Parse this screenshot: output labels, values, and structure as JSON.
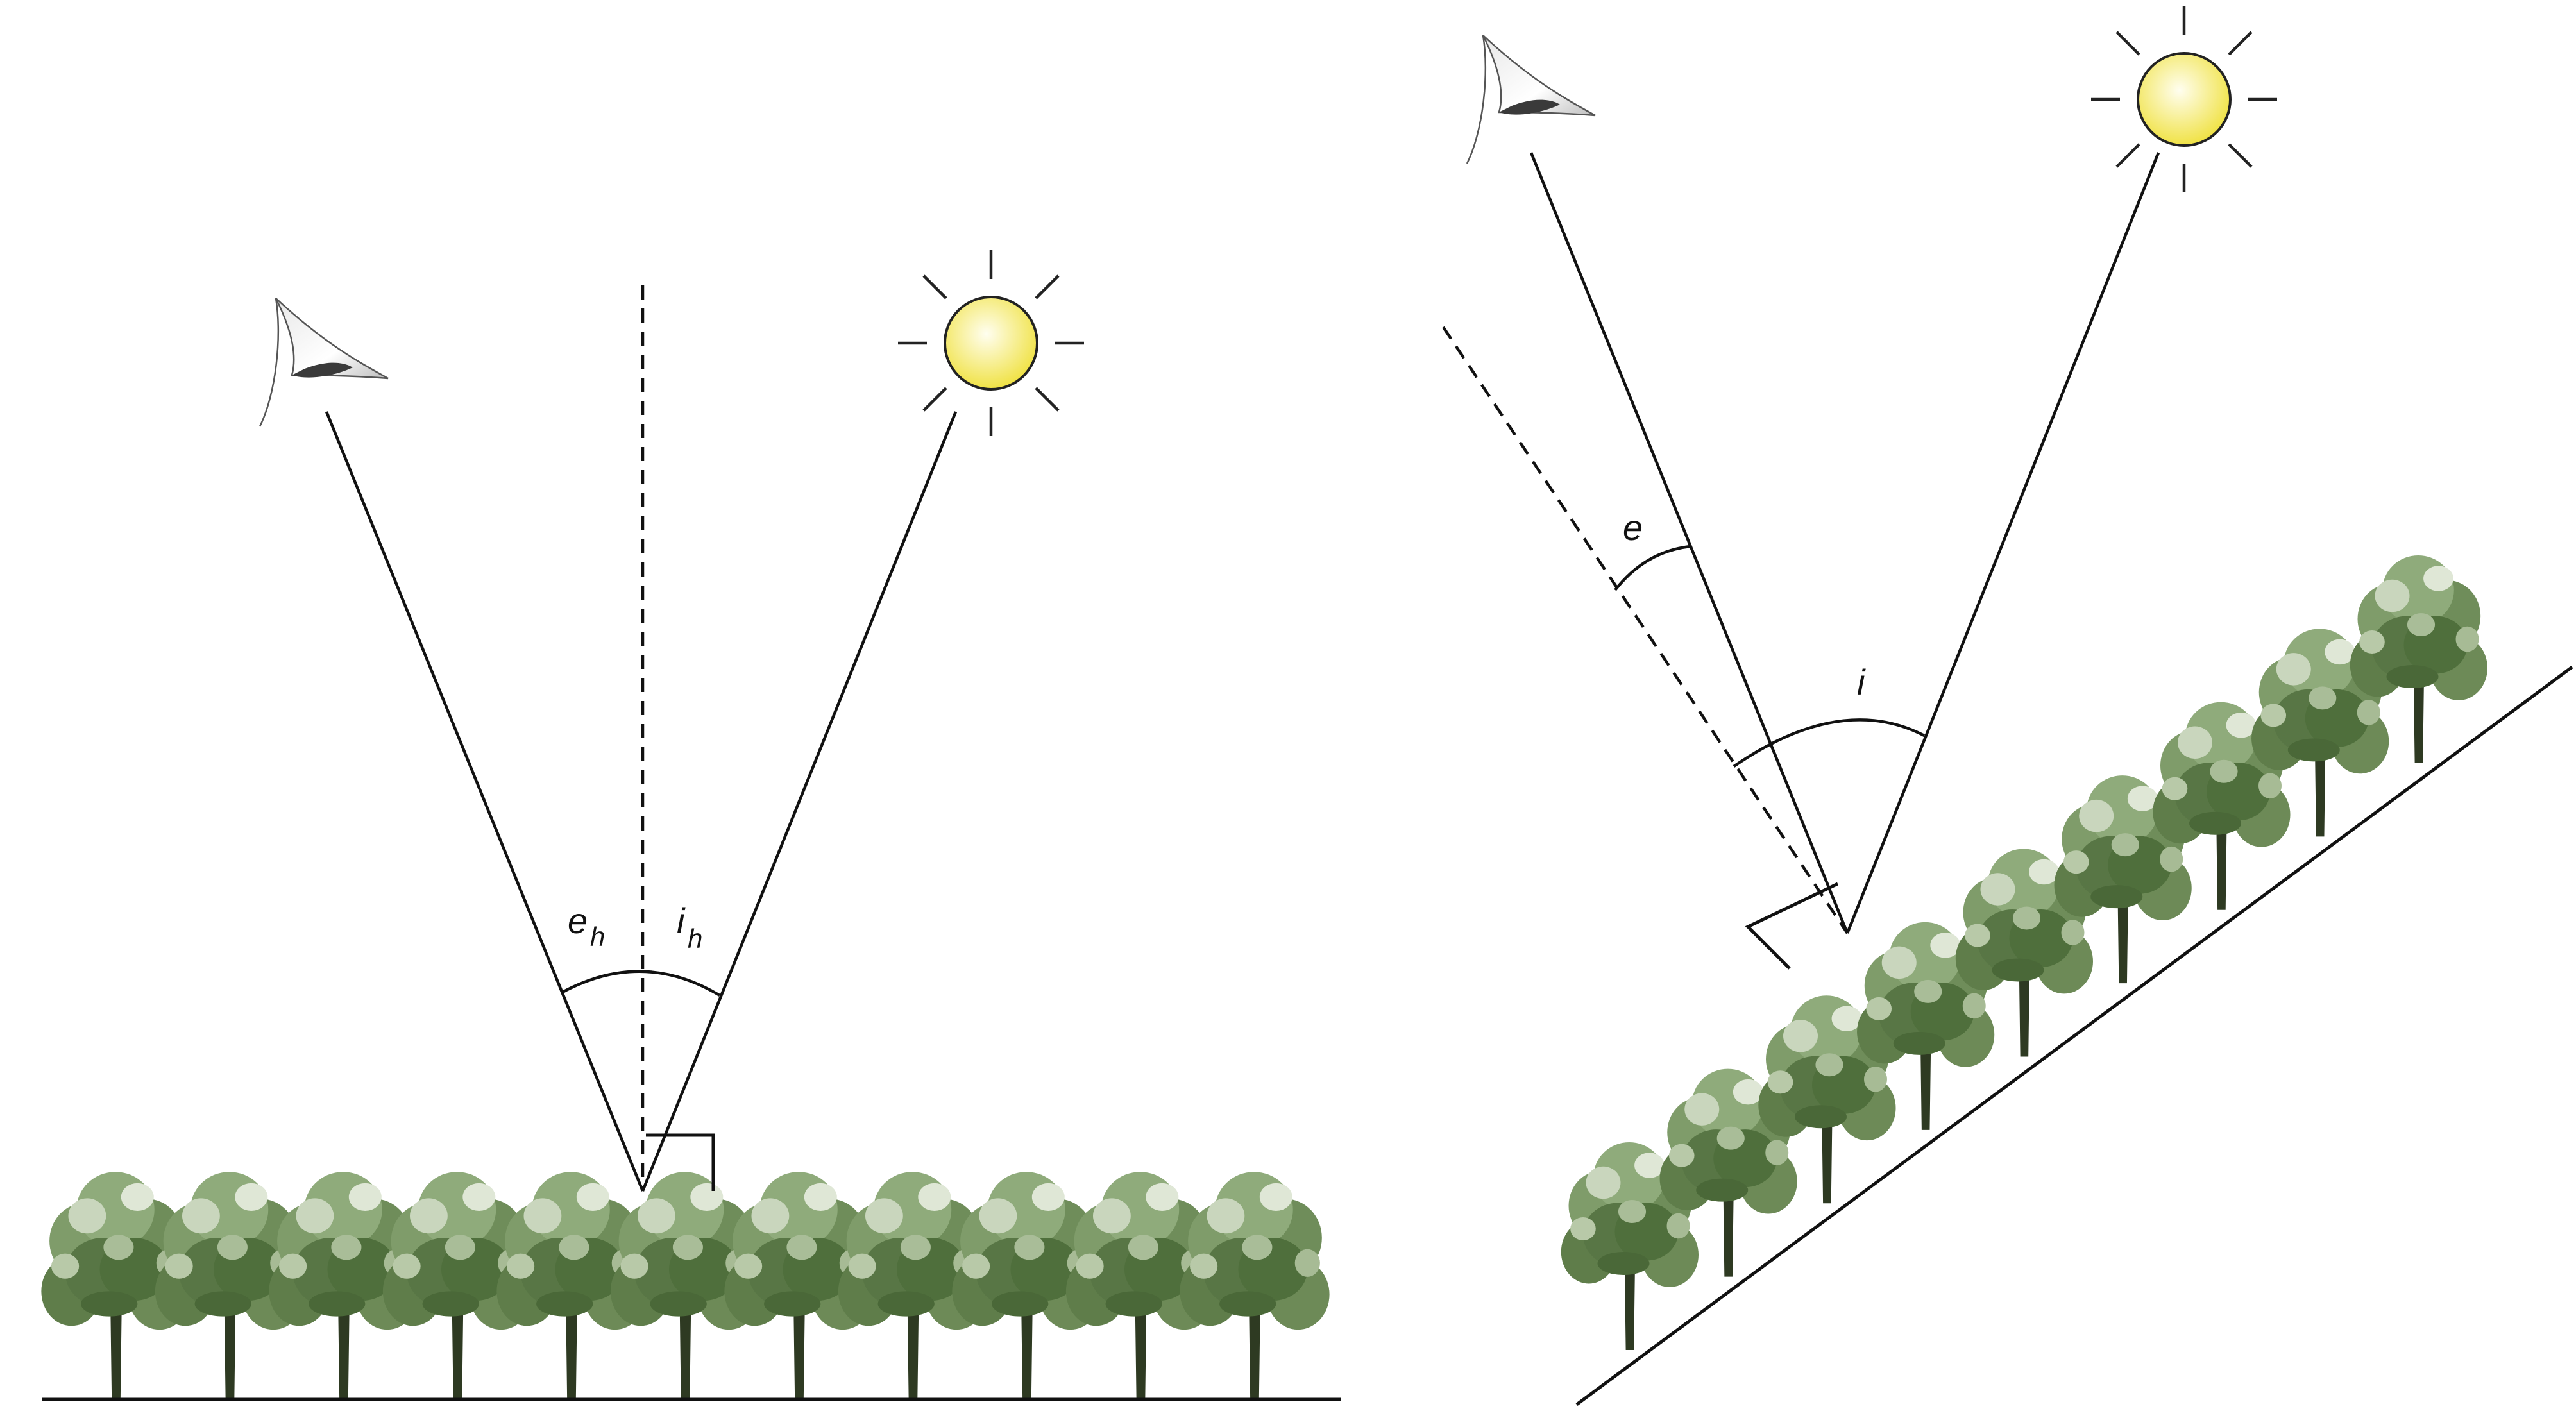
{
  "left_panel": {
    "label_e": "e",
    "label_e_sub": "h",
    "label_i": "i",
    "label_i_sub": "h",
    "tree_count": 11
  },
  "right_panel": {
    "label_e": "e",
    "label_i": "i",
    "tree_count": 9
  },
  "colors": {
    "line": "#111111",
    "sun_fill_center": "#fffde0",
    "sun_fill_edge": "#f3ea4a",
    "foliage_dark": "#4f6f3c",
    "foliage_mid": "#7f9c6a",
    "foliage_light": "#c9d6bd",
    "trunk": "#2e3a22"
  },
  "icons": {
    "eye": "eye-icon",
    "sun": "sun-icon",
    "tree": "tree-icon"
  }
}
